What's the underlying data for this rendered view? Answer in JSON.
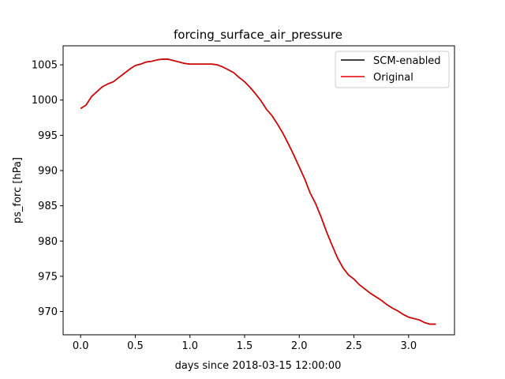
{
  "chart_data": {
    "type": "line",
    "title": "forcing_surface_air_pressure",
    "xlabel": "days since 2018-03-15 12:00:00",
    "ylabel": "ps_forc [hPa]",
    "xlim": [
      -0.16,
      3.42
    ],
    "ylim": [
      966.7,
      1007.7
    ],
    "xticks": [
      0.0,
      0.5,
      1.0,
      1.5,
      2.0,
      2.5,
      3.0
    ],
    "xtick_labels": [
      "0.0",
      "0.5",
      "1.0",
      "1.5",
      "2.0",
      "2.5",
      "3.0"
    ],
    "yticks": [
      970,
      975,
      980,
      985,
      990,
      995,
      1000,
      1005
    ],
    "ytick_labels": [
      "970",
      "975",
      "980",
      "985",
      "990",
      "995",
      "1000",
      "1005"
    ],
    "grid": false,
    "legend_position": "top-right",
    "x": [
      0.0,
      0.05,
      0.1,
      0.15,
      0.2,
      0.25,
      0.3,
      0.35,
      0.4,
      0.45,
      0.5,
      0.55,
      0.6,
      0.65,
      0.7,
      0.75,
      0.8,
      0.85,
      0.9,
      0.95,
      1.0,
      1.05,
      1.1,
      1.15,
      1.2,
      1.25,
      1.3,
      1.35,
      1.4,
      1.45,
      1.5,
      1.55,
      1.6,
      1.65,
      1.7,
      1.75,
      1.8,
      1.85,
      1.9,
      1.95,
      2.0,
      2.05,
      2.1,
      2.15,
      2.2,
      2.25,
      2.3,
      2.35,
      2.4,
      2.45,
      2.5,
      2.55,
      2.6,
      2.65,
      2.7,
      2.75,
      2.8,
      2.85,
      2.9,
      2.95,
      3.0,
      3.05,
      3.1,
      3.15,
      3.2,
      3.25
    ],
    "series": [
      {
        "name": "SCM-enabled",
        "color": "#000000",
        "values": [
          998.8,
          999.3,
          1000.5,
          1001.2,
          1001.9,
          1002.3,
          1002.6,
          1003.2,
          1003.8,
          1004.4,
          1004.9,
          1005.1,
          1005.4,
          1005.5,
          1005.7,
          1005.8,
          1005.8,
          1005.6,
          1005.4,
          1005.2,
          1005.1,
          1005.1,
          1005.1,
          1005.1,
          1005.1,
          1005.0,
          1004.7,
          1004.3,
          1003.9,
          1003.2,
          1002.6,
          1001.8,
          1000.9,
          999.9,
          998.7,
          997.8,
          996.6,
          995.3,
          993.8,
          992.2,
          990.5,
          988.8,
          986.8,
          985.3,
          983.4,
          981.3,
          979.4,
          977.6,
          976.2,
          975.2,
          974.6,
          973.8,
          973.2,
          972.6,
          972.1,
          971.6,
          971.0,
          970.5,
          970.1,
          969.6,
          969.2,
          969.0,
          968.8,
          968.4,
          968.2,
          968.2
        ]
      },
      {
        "name": "Original",
        "color": "#dd0000",
        "values": [
          998.8,
          999.3,
          1000.5,
          1001.2,
          1001.9,
          1002.3,
          1002.6,
          1003.2,
          1003.8,
          1004.4,
          1004.9,
          1005.1,
          1005.4,
          1005.5,
          1005.7,
          1005.8,
          1005.8,
          1005.6,
          1005.4,
          1005.2,
          1005.1,
          1005.1,
          1005.1,
          1005.1,
          1005.1,
          1005.0,
          1004.7,
          1004.3,
          1003.9,
          1003.2,
          1002.6,
          1001.8,
          1000.9,
          999.9,
          998.7,
          997.8,
          996.6,
          995.3,
          993.8,
          992.2,
          990.5,
          988.8,
          986.8,
          985.3,
          983.4,
          981.3,
          979.4,
          977.6,
          976.2,
          975.2,
          974.6,
          973.8,
          973.2,
          972.6,
          972.1,
          971.6,
          971.0,
          970.5,
          970.1,
          969.6,
          969.2,
          969.0,
          968.8,
          968.4,
          968.2,
          968.2
        ]
      }
    ]
  }
}
